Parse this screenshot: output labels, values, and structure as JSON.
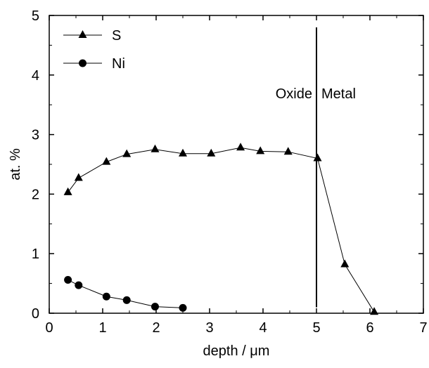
{
  "chart_data": {
    "type": "line",
    "title": "",
    "xlabel": "depth / μm",
    "ylabel": "at. %",
    "xlim": [
      0,
      7
    ],
    "ylim": [
      0,
      5
    ],
    "x_ticks": [
      "0",
      "1",
      "2",
      "3",
      "4",
      "5",
      "6",
      "7"
    ],
    "y_ticks": [
      "0",
      "1",
      "2",
      "3",
      "4",
      "5"
    ],
    "grid": false,
    "legend_position": "top-left",
    "series": [
      {
        "name": "S",
        "marker": "triangle",
        "color": "#000000",
        "x": [
          0.35,
          0.55,
          1.07,
          1.45,
          1.98,
          2.5,
          3.03,
          3.58,
          3.95,
          4.47,
          5.02,
          5.53,
          6.08
        ],
        "y": [
          2.03,
          2.27,
          2.54,
          2.67,
          2.75,
          2.68,
          2.68,
          2.78,
          2.72,
          2.71,
          2.6,
          0.82,
          0.02
        ]
      },
      {
        "name": "Ni",
        "marker": "circle",
        "color": "#000000",
        "x": [
          0.35,
          0.55,
          1.07,
          1.45,
          1.98,
          2.5
        ],
        "y": [
          0.56,
          0.47,
          0.28,
          0.22,
          0.11,
          0.09
        ]
      }
    ],
    "annotations": {
      "vline_x": 5,
      "vline_y_range": [
        0.1,
        4.8
      ],
      "left_label": "Oxide",
      "right_label": "Metal"
    }
  }
}
